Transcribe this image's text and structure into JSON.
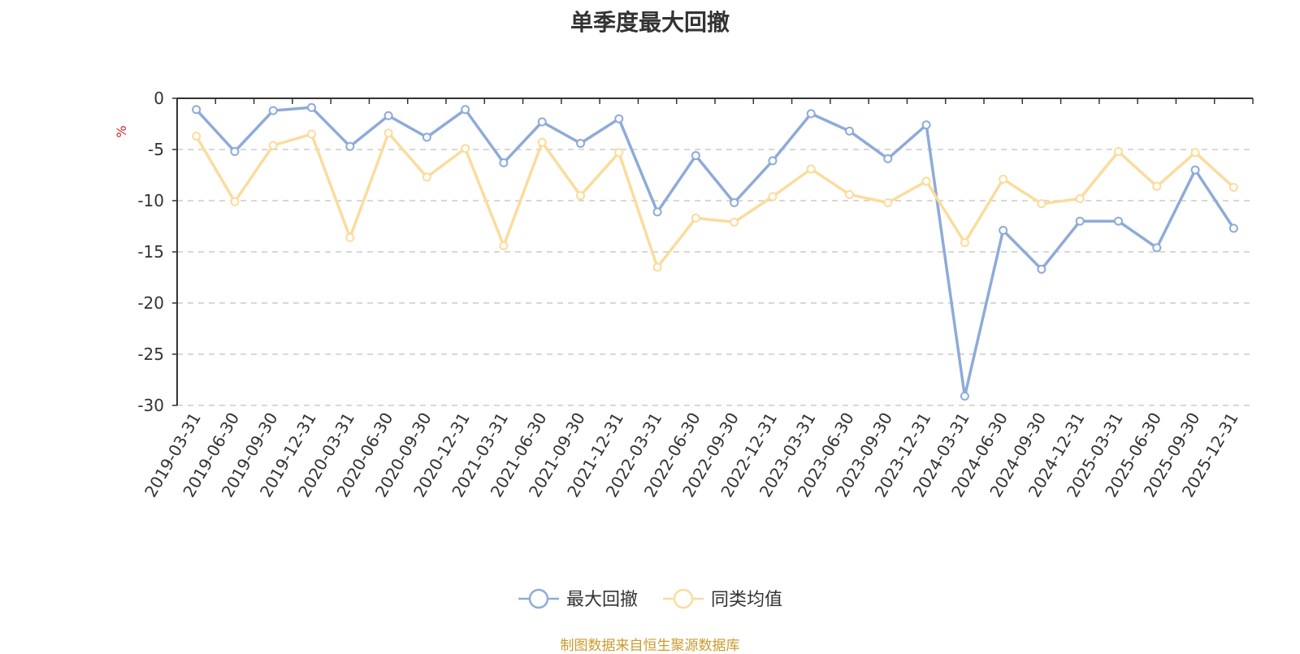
{
  "chart_data": {
    "type": "line",
    "title": "单季度最大回撤",
    "ylabel": "%",
    "ylim": [
      -30,
      0
    ],
    "yticks": [
      0,
      -5,
      -10,
      -15,
      -20,
      -25,
      -30
    ],
    "grid": true,
    "legend_position": "bottom",
    "categories": [
      "2019-03-31",
      "2019-06-30",
      "2019-09-30",
      "2019-12-31",
      "2020-03-31",
      "2020-06-30",
      "2020-09-30",
      "2020-12-31",
      "2021-03-31",
      "2021-06-30",
      "2021-09-30",
      "2021-12-31",
      "2022-03-31",
      "2022-06-30",
      "2022-09-30",
      "2022-12-31",
      "2023-03-31",
      "2023-06-30",
      "2023-09-30",
      "2023-12-31",
      "2024-03-31",
      "2024-06-30",
      "2024-09-30",
      "2024-12-31",
      "2025-03-31",
      "2025-06-30",
      "2025-09-30",
      "2025-12-31"
    ],
    "series": [
      {
        "name": "最大回撤",
        "color": "#8eabd8",
        "values": [
          -1.1,
          -5.2,
          -1.2,
          -0.9,
          -4.7,
          -1.7,
          -3.8,
          -1.1,
          -6.3,
          -2.3,
          -4.4,
          -2.0,
          -11.1,
          -5.6,
          -10.2,
          -6.1,
          -1.5,
          -3.2,
          -5.9,
          -2.6,
          -29.1,
          -12.9,
          -16.7,
          -12.0,
          -12.0,
          -14.6,
          -7.0,
          -12.7
        ]
      },
      {
        "name": "同类均值",
        "color": "#fbdc9c",
        "values": [
          -3.7,
          -10.1,
          -4.6,
          -3.5,
          -13.6,
          -3.4,
          -7.7,
          -4.9,
          -14.4,
          -4.3,
          -9.5,
          -5.3,
          -16.5,
          -11.7,
          -12.1,
          -9.6,
          -6.9,
          -9.4,
          -10.2,
          -8.1,
          -14.1,
          -7.9,
          -10.3,
          -9.8,
          -5.2,
          -8.6,
          -5.3,
          -8.7
        ]
      }
    ]
  },
  "source_note": "制图数据来自恒生聚源数据库",
  "colors": {
    "source_note": "#cc9a2e",
    "unit_label": "#e02020",
    "axis": "#333333",
    "grid": "#cccccc"
  }
}
